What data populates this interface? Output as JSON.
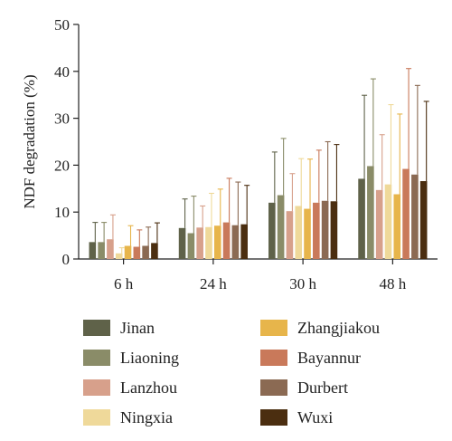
{
  "chart_data": {
    "type": "bar",
    "title": "",
    "xlabel": "",
    "ylabel": "NDF degradation (%)",
    "ylim": [
      0,
      50
    ],
    "yticks": [
      0,
      10,
      20,
      30,
      40,
      50
    ],
    "grid": false,
    "error_bars": true,
    "legend_position": "bottom",
    "categories": [
      "6 h",
      "24 h",
      "30 h",
      "48 h"
    ],
    "series": [
      {
        "name": "Jinan",
        "color": "#5f6249",
        "values": [
          3.6,
          6.6,
          12.0,
          17.1
        ],
        "errors": [
          4.2,
          6.2,
          10.8,
          17.8
        ]
      },
      {
        "name": "Liaoning",
        "color": "#8a8c68",
        "values": [
          3.6,
          5.5,
          13.6,
          19.8
        ],
        "errors": [
          4.2,
          7.9,
          12.1,
          18.6
        ]
      },
      {
        "name": "Lanzhou",
        "color": "#d7a08b",
        "values": [
          4.2,
          6.7,
          10.2,
          14.7
        ],
        "errors": [
          5.2,
          4.6,
          8.0,
          11.8
        ]
      },
      {
        "name": "Ningxia",
        "color": "#efd99a",
        "values": [
          1.2,
          6.8,
          11.3,
          15.9
        ],
        "errors": [
          1.2,
          7.2,
          10.1,
          17.0
        ]
      },
      {
        "name": "Zhangjiakou",
        "color": "#e7b54b",
        "values": [
          2.8,
          7.1,
          10.7,
          13.8
        ],
        "errors": [
          4.3,
          7.8,
          10.6,
          17.1
        ]
      },
      {
        "name": "Bayannur",
        "color": "#c9795a",
        "values": [
          2.6,
          7.8,
          12.0,
          19.2
        ],
        "errors": [
          3.6,
          9.4,
          11.2,
          21.4
        ]
      },
      {
        "name": "Durbert",
        "color": "#8b6a53",
        "values": [
          2.8,
          7.2,
          12.4,
          18.0
        ],
        "errors": [
          4.0,
          9.2,
          12.6,
          19.0
        ]
      },
      {
        "name": "Wuxi",
        "color": "#4b2e10",
        "values": [
          3.4,
          7.4,
          12.3,
          16.6
        ],
        "errors": [
          4.3,
          8.3,
          12.1,
          17.0
        ]
      }
    ]
  }
}
